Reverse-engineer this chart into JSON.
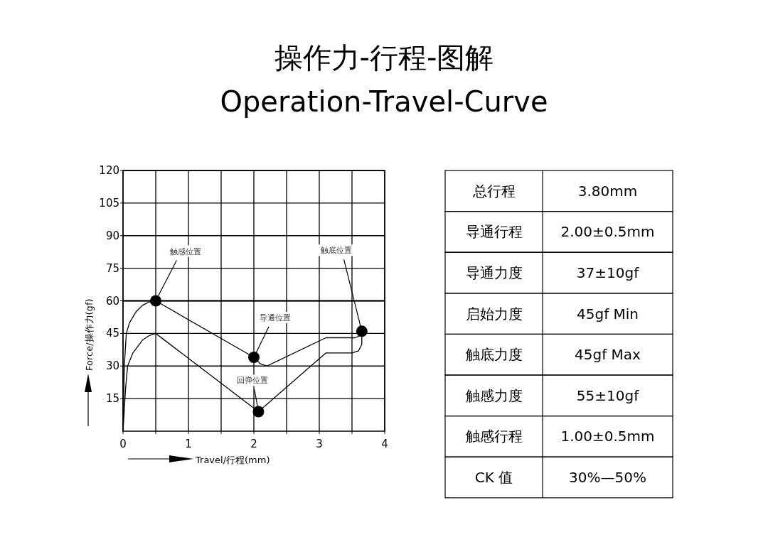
{
  "chart_data": [
    {
      "type": "line",
      "title": "操作力-行程-图解",
      "subtitle": "Operation-Travel-Curve",
      "xlabel": "Travel/行程(mm)",
      "ylabel": "Force/操作力(gf)",
      "xlim": [
        0,
        4
      ],
      "ylim": [
        0,
        120
      ],
      "xticks": [
        0,
        {
          "value": 0.5,
          "label": null
        },
        1,
        {
          "value": 1.5,
          "label": null
        },
        2,
        {
          "value": 2.5,
          "label": null
        },
        3,
        {
          "value": 3.5,
          "label": null
        },
        4
      ],
      "yticks": [
        15,
        30,
        45,
        60,
        75,
        90,
        105,
        120
      ],
      "grid": true,
      "marker": "none",
      "line_style": "solid",
      "ref_lines": [
        {
          "axis": "y",
          "value": 60,
          "color": "#000000"
        }
      ],
      "series": [
        {
          "color": "#000000",
          "x": [
            0,
            0.02,
            0.05,
            0.1,
            0.2,
            0.3,
            0.4,
            0.5,
            2.0,
            2.1,
            2.2,
            3.1,
            3.55,
            3.62,
            3.65
          ],
          "values": [
            0,
            30,
            45,
            50,
            55,
            58,
            59.5,
            60,
            34,
            31,
            30,
            43,
            43,
            44,
            46
          ]
        },
        {
          "color": "#000000",
          "x": [
            0,
            0.04,
            0.07,
            0.15,
            0.3,
            0.4,
            0.5,
            2.07,
            3.1,
            3.5,
            3.6,
            3.65,
            3.65
          ],
          "values": [
            0,
            20,
            30,
            36,
            42,
            44,
            45,
            9,
            36,
            36,
            37,
            40,
            46
          ]
        },
        {
          "type": "scatter",
          "marker": "circle",
          "color": "#000000",
          "x": [
            0.5,
            2.0,
            2.07,
            3.65
          ],
          "values": [
            60,
            34,
            9,
            46
          ]
        }
      ],
      "annotations": [
        {
          "text": "触感位置",
          "x": 0.5,
          "y": 60
        },
        {
          "text": "导通位置",
          "x": 2.0,
          "y": 34
        },
        {
          "text": "回弹位置",
          "x": 2.07,
          "y": 9
        },
        {
          "text": "触底位置",
          "x": 3.65,
          "y": 46
        }
      ]
    },
    {
      "type": "other",
      "annotations": [
        "总行程",
        "3.80mm",
        "导通行程",
        "2.00±0.5mm",
        "导通力度",
        "37±10gf",
        "启始力度",
        "45gf  Min",
        "触底力度",
        "45gf  Max",
        "触感力度",
        "55±10gf",
        "触感行程",
        "1.00±0.5mm",
        "CK 值",
        "30%—50%"
      ]
    }
  ]
}
